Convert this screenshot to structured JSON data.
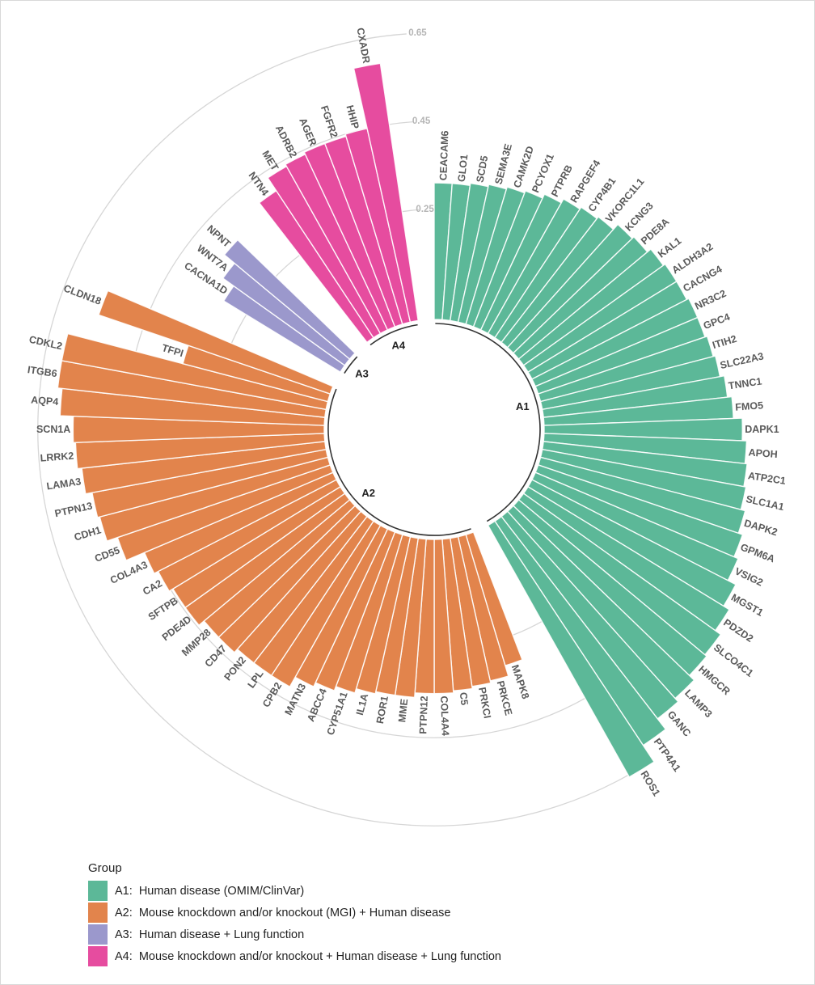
{
  "chart_data": {
    "type": "bar",
    "layout": "circular",
    "yticks": [
      "0.25",
      "0.45",
      "0.65"
    ],
    "ytick_values": [
      0.25,
      0.45,
      0.65
    ],
    "ylim": [
      0,
      0.65
    ],
    "legend_title": "Group",
    "legend_position": "bottom-left",
    "groups": [
      {
        "id": "A1",
        "label": "A1:  Human disease (OMIM/ClinVar)",
        "color": "#5cb898",
        "genes": [
          "CEACAM6",
          "GLO1",
          "SCD5",
          "SEMA3E",
          "CAMK2D",
          "PCYOX1",
          "PTPRB",
          "RAPGEF4",
          "CYP4B1",
          "VKORC1L1",
          "KCNG3",
          "PDE8A",
          "KAL1",
          "ALDH3A2",
          "CACNG4",
          "NR3C2",
          "GPC4",
          "ITIH2",
          "SLC22A3",
          "TNNC1",
          "FMO5",
          "DAPK1",
          "APOH",
          "ATP2C1",
          "SLC1A1",
          "DAPK2",
          "GPM6A",
          "VSIG2",
          "MGST1",
          "PDZD2",
          "SLCO4C1",
          "HMGCR",
          "LAMP3",
          "GANC",
          "PTP4A1",
          "ROS1"
        ],
        "values": [
          0.31,
          0.31,
          0.315,
          0.32,
          0.325,
          0.33,
          0.34,
          0.35,
          0.355,
          0.36,
          0.375,
          0.38,
          0.39,
          0.395,
          0.395,
          0.4,
          0.4,
          0.405,
          0.41,
          0.42,
          0.43,
          0.45,
          0.46,
          0.465,
          0.47,
          0.48,
          0.49,
          0.5,
          0.52,
          0.535,
          0.55,
          0.555,
          0.57,
          0.58,
          0.61,
          0.655
        ]
      },
      {
        "id": "A2",
        "label": "A2:  Mouse knockdown and/or knockout (MGI) + Human disease",
        "color": "#e2844c",
        "genes": [
          "MAPK8",
          "PRKCE",
          "PRKCI",
          "C5",
          "COL4A4",
          "PTPN12",
          "MME",
          "ROR1",
          "IL1A",
          "CYP51A1",
          "ABCC4",
          "MATN3",
          "CPB2",
          "LPL",
          "PON2",
          "CD47",
          "MMP28",
          "PDE4D",
          "SFTPB",
          "CA2",
          "COL4A3",
          "CD55",
          "CDH1",
          "PTPN13",
          "LAMA3",
          "LRRK2",
          "SCN1A",
          "AQP4",
          "ITGB6",
          "CDKL2",
          "TFPI",
          "CLDN18"
        ],
        "values": [
          0.31,
          0.335,
          0.34,
          0.345,
          0.35,
          0.35,
          0.36,
          0.36,
          0.365,
          0.375,
          0.385,
          0.395,
          0.42,
          0.42,
          0.42,
          0.43,
          0.43,
          0.445,
          0.445,
          0.455,
          0.465,
          0.51,
          0.535,
          0.54,
          0.555,
          0.565,
          0.57,
          0.6,
          0.61,
          0.61,
          0.34,
          0.555
        ]
      },
      {
        "id": "A3",
        "label": "A3:  Human disease + Lung function",
        "color": "#9b98cc",
        "genes": [
          "CACNA1D",
          "WNT7A",
          "NPNT"
        ],
        "values": [
          0.31,
          0.34,
          0.37
        ]
      },
      {
        "id": "A4",
        "label": "A4:  Mouse knockdown and/or knockout + Human disease + Lung function",
        "color": "#e64c9f",
        "genes": [
          "NTN4",
          "MET",
          "ADRB2",
          "AGER",
          "FGFR2",
          "HHIP",
          "CXADR"
        ],
        "values": [
          0.4,
          0.435,
          0.44,
          0.445,
          0.445,
          0.45,
          0.59
        ]
      }
    ]
  }
}
